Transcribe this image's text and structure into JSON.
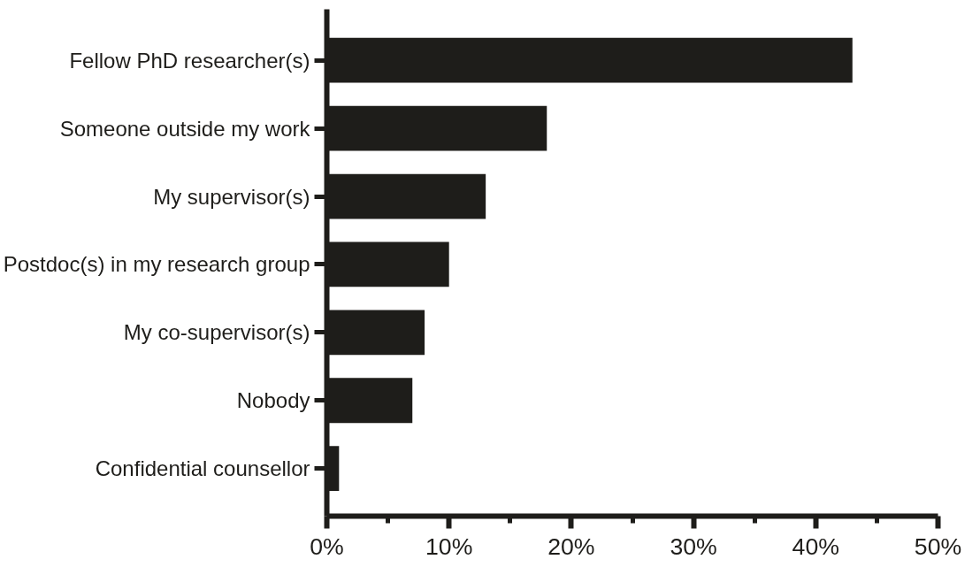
{
  "chart_data": {
    "type": "bar",
    "orientation": "horizontal",
    "categories": [
      "Fellow PhD researcher(s)",
      "Someone outside my work",
      "My supervisor(s)",
      "Postdoc(s) in my research group",
      "My co-supervisor(s)",
      "Nobody",
      "Confidential counsellor"
    ],
    "values": [
      43,
      18,
      13,
      10,
      8,
      7,
      1
    ],
    "color": "#1e1d1a",
    "xlim": [
      0,
      50
    ],
    "xticks": [
      {
        "value": 0,
        "label": "0%"
      },
      {
        "value": 5,
        "label": null
      },
      {
        "value": 10,
        "label": "10%"
      },
      {
        "value": 15,
        "label": null
      },
      {
        "value": 20,
        "label": "20%"
      },
      {
        "value": 25,
        "label": null
      },
      {
        "value": 30,
        "label": "30%"
      },
      {
        "value": 35,
        "label": null
      },
      {
        "value": 40,
        "label": "40%"
      },
      {
        "value": 45,
        "label": null
      },
      {
        "value": 50,
        "label": "50%"
      }
    ],
    "grid": false
  }
}
